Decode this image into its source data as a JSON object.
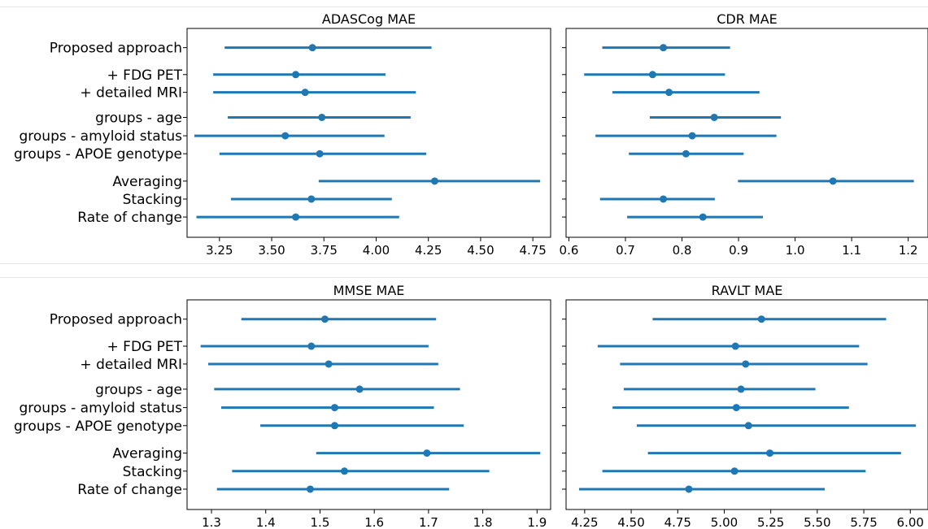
{
  "chart_data": [
    {
      "type": "errorbar",
      "title": "ADASCog MAE",
      "categories": [
        "Proposed approach",
        "+ FDG PET",
        "+ detailed MRI",
        "groups - age",
        "groups - amyloid status",
        "groups - APOE genotype",
        "Averaging",
        "Stacking",
        "Rate of change"
      ],
      "series": [
        {
          "values": [
            3.695,
            3.615,
            3.66,
            3.74,
            3.565,
            3.73,
            4.28,
            3.69,
            3.615
          ],
          "lower": [
            3.275,
            3.22,
            3.22,
            3.29,
            3.13,
            3.25,
            3.725,
            3.305,
            3.14
          ],
          "upper": [
            4.265,
            4.045,
            4.19,
            4.165,
            4.04,
            4.24,
            4.785,
            4.075,
            4.11
          ],
          "color": "#1f77b4"
        }
      ],
      "xlim": [
        3.095,
        4.835
      ],
      "xticks": [
        "3.25",
        "3.50",
        "3.75",
        "4.00",
        "4.25",
        "4.50",
        "4.75"
      ],
      "show_yticklabels": true
    },
    {
      "type": "errorbar",
      "title": "CDR MAE",
      "categories": [
        "Proposed approach",
        "+ FDG PET",
        "+ detailed MRI",
        "groups - age",
        "groups - amyloid status",
        "groups - APOE genotype",
        "Averaging",
        "Stacking",
        "Rate of change"
      ],
      "series": [
        {
          "values": [
            0.767,
            0.748,
            0.777,
            0.857,
            0.818,
            0.807,
            1.067,
            0.767,
            0.837
          ],
          "lower": [
            0.659,
            0.627,
            0.677,
            0.743,
            0.647,
            0.706,
            0.899,
            0.655,
            0.703
          ],
          "upper": [
            0.885,
            0.876,
            0.937,
            0.975,
            0.967,
            0.909,
            1.21,
            0.858,
            0.943
          ],
          "color": "#1f77b4"
        }
      ],
      "xlim": [
        0.595,
        1.235
      ],
      "xticks": [
        "0.6",
        "0.7",
        "0.8",
        "0.9",
        "1.0",
        "1.1",
        "1.2"
      ],
      "show_yticklabels": false
    },
    {
      "type": "errorbar",
      "title": "MMSE MAE",
      "categories": [
        "Proposed approach",
        "+ FDG PET",
        "+ detailed MRI",
        "groups - age",
        "groups - amyloid status",
        "groups - APOE genotype",
        "Averaging",
        "Stacking",
        "Rate of change"
      ],
      "series": [
        {
          "values": [
            1.509,
            1.484,
            1.516,
            1.573,
            1.527,
            1.527,
            1.697,
            1.545,
            1.482
          ],
          "lower": [
            1.355,
            1.28,
            1.294,
            1.305,
            1.318,
            1.39,
            1.493,
            1.338,
            1.31
          ],
          "upper": [
            1.714,
            1.7,
            1.718,
            1.758,
            1.71,
            1.765,
            1.906,
            1.812,
            1.738
          ],
          "color": "#1f77b4"
        }
      ],
      "xlim": [
        1.255,
        1.925
      ],
      "xticks": [
        "1.3",
        "1.4",
        "1.5",
        "1.6",
        "1.7",
        "1.8",
        "1.9"
      ],
      "show_yticklabels": true
    },
    {
      "type": "errorbar",
      "title": "RAVLT MAE",
      "categories": [
        "Proposed approach",
        "+ FDG PET",
        "+ detailed MRI",
        "groups - age",
        "groups - amyloid status",
        "groups - APOE genotype",
        "Averaging",
        "Stacking",
        "Rate of change"
      ],
      "series": [
        {
          "values": [
            5.2,
            5.06,
            5.115,
            5.09,
            5.065,
            5.13,
            5.245,
            5.055,
            4.81
          ],
          "lower": [
            4.615,
            4.32,
            4.44,
            4.46,
            4.4,
            4.53,
            4.59,
            4.345,
            4.22
          ],
          "upper": [
            5.87,
            5.725,
            5.77,
            5.49,
            5.67,
            6.03,
            5.95,
            5.76,
            5.54
          ],
          "color": "#1f77b4"
        }
      ],
      "xlim": [
        4.15,
        6.095
      ],
      "xticks": [
        "4.25",
        "4.50",
        "4.75",
        "5.00",
        "5.25",
        "5.50",
        "5.75",
        "6.00"
      ],
      "show_yticklabels": false
    }
  ]
}
